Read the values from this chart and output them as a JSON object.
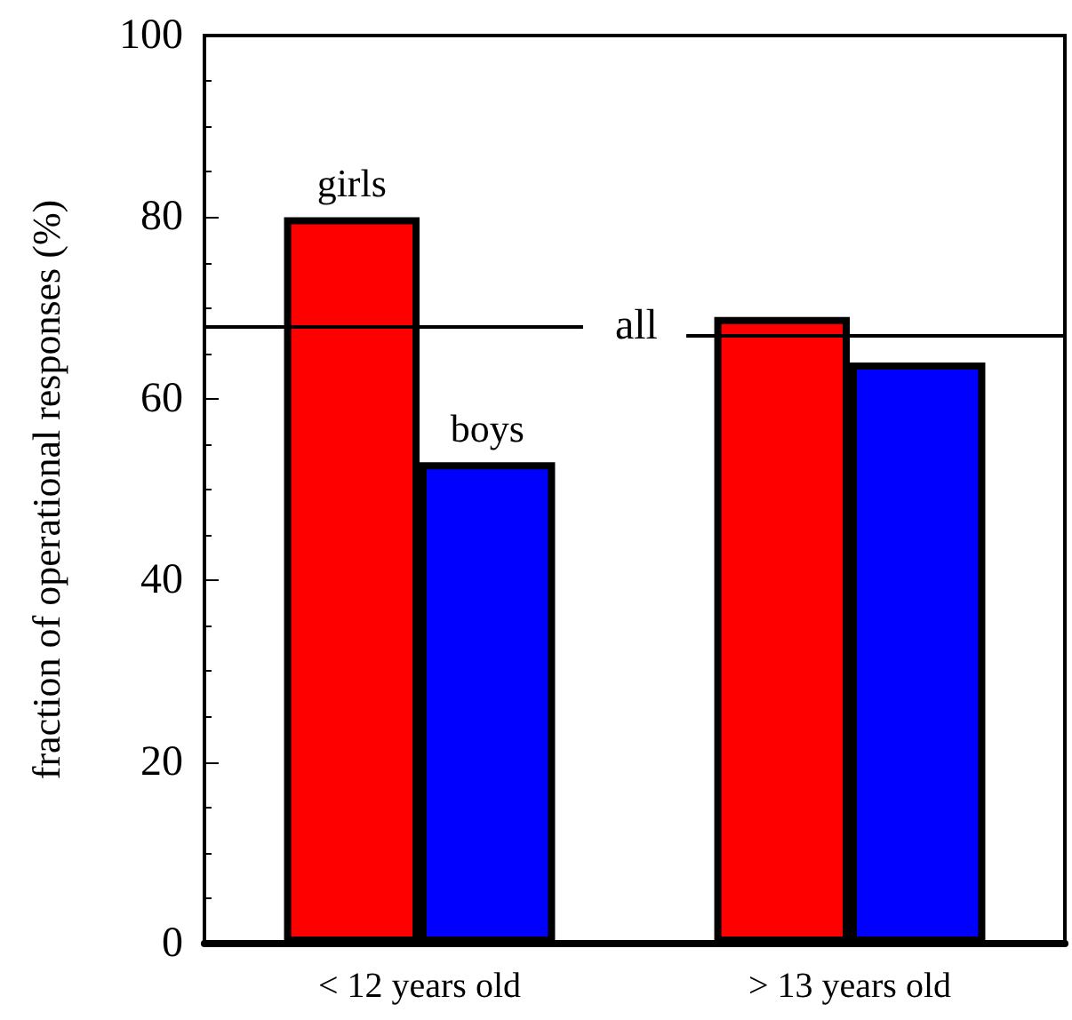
{
  "chart_data": {
    "type": "bar",
    "ylabel": "fraction of operational responses (%)",
    "categories": [
      "< 12 years old",
      "> 13 years old"
    ],
    "series": [
      {
        "name": "girls",
        "color": "#ff0000",
        "values": [
          80,
          69
        ]
      },
      {
        "name": "boys",
        "color": "#0000ff",
        "values": [
          53,
          64
        ]
      }
    ],
    "ylim": [
      0,
      100
    ],
    "yticks": [
      0,
      20,
      40,
      60,
      80,
      100
    ],
    "grid": false,
    "legend": false,
    "ref_lines": [
      {
        "axis": "y",
        "value": 68,
        "label": "all",
        "color": "#000000"
      },
      {
        "axis": "y",
        "value": 67,
        "label": null,
        "color": "#000000"
      }
    ]
  }
}
